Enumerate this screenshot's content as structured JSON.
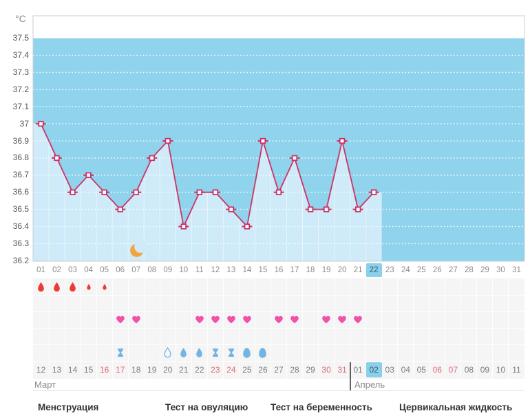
{
  "unit_label": "°C",
  "colors": {
    "plot_background": "#8fd3ec",
    "area_fill": "#cfeaf8",
    "line": "#cb3366",
    "grid_dots": "#ffffff",
    "highlight_day_background": "#8ad0ea",
    "menstruation_red": "#ee3a34",
    "intimacy_pink": "#f351a7",
    "cervical_blue": "#72b4e2",
    "weekend_red": "#e06a78",
    "moon_orange": "#f3a43f"
  },
  "chart_data": {
    "type": "line",
    "title": "Basal body temperature cycle chart",
    "ylabel": "°C",
    "ylim": [
      36.2,
      37.63
    ],
    "yticks": [
      37.5,
      37.4,
      37.3,
      37.2,
      37.1,
      37.0,
      36.9,
      36.8,
      36.7,
      36.6,
      36.5,
      36.4,
      36.3,
      36.2
    ],
    "ytick_labels": [
      "37.5",
      "37.4",
      "37.3",
      "37.2",
      "37.1",
      "37",
      "36.9",
      "36.8",
      "36.7",
      "36.6",
      "36.5",
      "36.4",
      "36.3",
      "36.2"
    ],
    "x_labels": [
      "01",
      "02",
      "03",
      "04",
      "05",
      "06",
      "07",
      "08",
      "09",
      "10",
      "11",
      "12",
      "13",
      "14",
      "15",
      "16",
      "17",
      "18",
      "19",
      "20",
      "21",
      "22",
      "23",
      "24",
      "25",
      "26",
      "27",
      "28",
      "29",
      "30",
      "31"
    ],
    "grid": "dotted-horizontal",
    "legend_position": "none",
    "today_day": 22,
    "series": [
      {
        "name": "temperature",
        "x": [
          1,
          2,
          3,
          4,
          5,
          6,
          7,
          8,
          9,
          10,
          11,
          12,
          13,
          14,
          15,
          16,
          17,
          18,
          19,
          20,
          21,
          22
        ],
        "values": [
          37.0,
          36.8,
          36.6,
          36.7,
          36.6,
          36.5,
          36.6,
          36.8,
          36.9,
          36.4,
          36.6,
          36.6,
          36.5,
          36.4,
          36.9,
          36.6,
          36.8,
          36.5,
          36.5,
          36.9,
          36.5,
          36.6
        ]
      }
    ],
    "annotations": [
      {
        "type": "moon",
        "day": 7,
        "value": 36.26
      }
    ]
  },
  "tracking_rows": [
    {
      "name": "menstruation",
      "entries": [
        {
          "day": 1,
          "icon": "drop",
          "size": "large"
        },
        {
          "day": 2,
          "icon": "drop",
          "size": "large"
        },
        {
          "day": 3,
          "icon": "drop",
          "size": "large"
        },
        {
          "day": 4,
          "icon": "drop",
          "size": "small"
        },
        {
          "day": 5,
          "icon": "drop",
          "size": "small"
        }
      ],
      "color": "#ee3a34"
    },
    {
      "name": "ovulation-test",
      "entries": [],
      "color": "#72b4e2"
    },
    {
      "name": "intimacy",
      "entries": [
        {
          "day": 6,
          "icon": "heart"
        },
        {
          "day": 7,
          "icon": "heart"
        },
        {
          "day": 11,
          "icon": "heart"
        },
        {
          "day": 12,
          "icon": "heart"
        },
        {
          "day": 13,
          "icon": "heart"
        },
        {
          "day": 14,
          "icon": "heart"
        },
        {
          "day": 16,
          "icon": "heart"
        },
        {
          "day": 17,
          "icon": "heart"
        },
        {
          "day": 19,
          "icon": "heart"
        },
        {
          "day": 20,
          "icon": "heart"
        },
        {
          "day": 21,
          "icon": "heart"
        }
      ],
      "color": "#f351a7"
    },
    {
      "name": "pregnancy-test",
      "entries": [],
      "color": "#72b4e2"
    },
    {
      "name": "cervical-fluid",
      "entries": [
        {
          "day": 6,
          "icon": "hourglass"
        },
        {
          "day": 9,
          "icon": "drop-outline"
        },
        {
          "day": 10,
          "icon": "drop"
        },
        {
          "day": 11,
          "icon": "drop"
        },
        {
          "day": 12,
          "icon": "hourglass"
        },
        {
          "day": 13,
          "icon": "hourglass"
        },
        {
          "day": 14,
          "icon": "egg"
        },
        {
          "day": 15,
          "icon": "egg"
        }
      ],
      "color": "#72b4e2"
    }
  ],
  "calendar": {
    "dates": [
      "12",
      "13",
      "14",
      "15",
      "16",
      "17",
      "18",
      "19",
      "20",
      "21",
      "22",
      "23",
      "24",
      "25",
      "26",
      "27",
      "28",
      "29",
      "30",
      "31",
      "01",
      "02",
      "03",
      "04",
      "05",
      "06",
      "07",
      "08",
      "09",
      "10",
      "11"
    ],
    "weekend_indices": [
      4,
      5,
      11,
      12,
      18,
      19,
      25,
      26
    ],
    "today_index": 21,
    "month_divider_after_index": 19,
    "months": [
      "Март",
      "Апрель"
    ]
  },
  "legend": {
    "items": [
      {
        "label": "Менструация"
      },
      {
        "label": "Тест на овуляцию"
      },
      {
        "label": "Тест на беременность"
      },
      {
        "label": "Цервикальная жидкость"
      }
    ]
  }
}
